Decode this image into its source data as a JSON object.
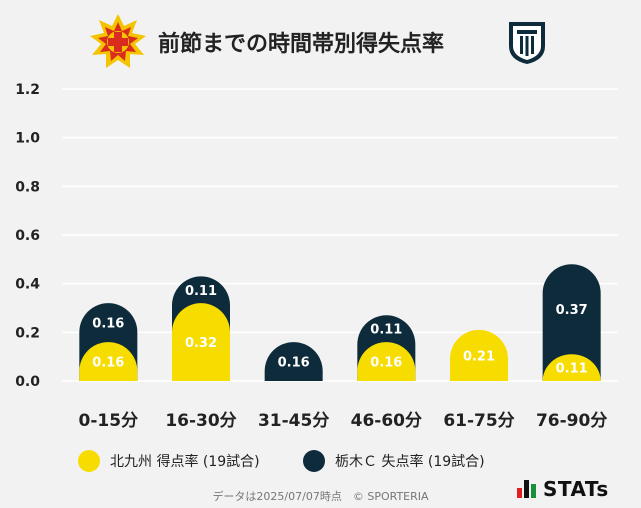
{
  "header": {
    "title": "前節までの時間帯別得失点率"
  },
  "legend": {
    "scored_label": "北九州 得点率 (19試合)",
    "conceded_label": "栃木Ｃ 失点率 (19試合)"
  },
  "footer": {
    "note": "データは2025/07/07時点　© SPORTERIA",
    "brand": "STATs"
  },
  "colors": {
    "scored": "#f7dc00",
    "conceded": "#0d2b3a",
    "background": "#f2f2f2"
  },
  "chart_data": {
    "type": "bar",
    "categories": [
      "0-15分",
      "16-30分",
      "31-45分",
      "46-60分",
      "61-75分",
      "76-90分"
    ],
    "series": [
      {
        "name": "北九州 得点率 (19試合)",
        "values": [
          0.16,
          0.32,
          null,
          0.16,
          0.21,
          0.11
        ]
      },
      {
        "name": "栃木Ｃ 失点率 (19試合)",
        "values": [
          0.16,
          0.11,
          0.16,
          0.11,
          null,
          0.37
        ]
      }
    ],
    "labels_scored": [
      "0.16",
      "0.32",
      "",
      "0.16",
      "0.21",
      "0.11"
    ],
    "labels_conceded": [
      "0.16",
      "0.11",
      "0.16",
      "0.11",
      "",
      "0.37"
    ],
    "yticks": [
      "0.0",
      "0.2",
      "0.4",
      "0.6",
      "0.8",
      "1.0",
      "1.2"
    ],
    "ylim": [
      0,
      1.2
    ],
    "grid": true,
    "legend_position": "bottom"
  }
}
